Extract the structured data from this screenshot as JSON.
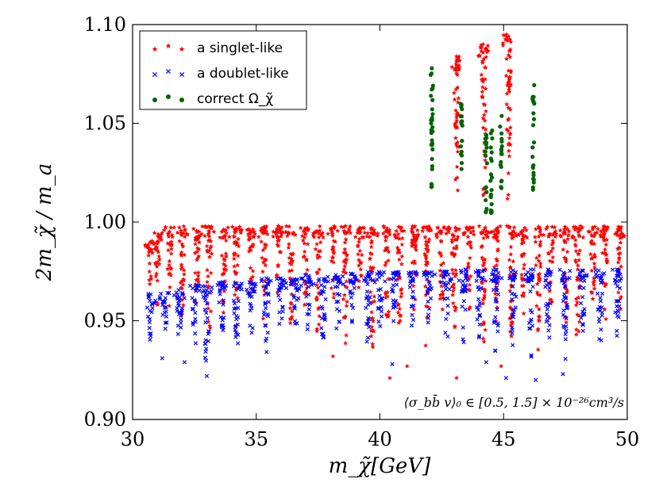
{
  "chart_data": {
    "type": "scatter",
    "title": "",
    "xlabel": "m_χ̃[GeV]",
    "ylabel": "2m_χ̃ / m_a",
    "xlim": [
      30,
      50
    ],
    "ylim": [
      0.9,
      1.1
    ],
    "xticks": [
      "30",
      "35",
      "40",
      "45",
      "50"
    ],
    "yticks": [
      "0.90",
      "0.95",
      "1.00",
      "1.05",
      "1.10"
    ],
    "grid": false,
    "legend_position": "top-left",
    "annotation": "⟨σ_bb̄ v⟩₀ ∈ [0.5, 1.5] × 10⁻²⁶cm³/s",
    "series": [
      {
        "name": "a singlet-like",
        "marker": "star",
        "color": "#ff0000",
        "spikes": [
          {
            "x": 30.7,
            "ymin": 0.96,
            "ymax": 0.992
          },
          {
            "x": 31.0,
            "ymin": 0.955,
            "ymax": 0.995
          },
          {
            "x": 31.5,
            "ymin": 0.955,
            "ymax": 0.998
          },
          {
            "x": 32.0,
            "ymin": 0.945,
            "ymax": 0.998
          },
          {
            "x": 32.6,
            "ymin": 0.95,
            "ymax": 0.998
          },
          {
            "x": 33.1,
            "ymin": 0.94,
            "ymax": 0.998
          },
          {
            "x": 33.7,
            "ymin": 0.95,
            "ymax": 0.998
          },
          {
            "x": 34.2,
            "ymin": 0.945,
            "ymax": 0.998
          },
          {
            "x": 34.8,
            "ymin": 0.955,
            "ymax": 0.998
          },
          {
            "x": 35.3,
            "ymin": 0.948,
            "ymax": 0.998
          },
          {
            "x": 35.9,
            "ymin": 0.955,
            "ymax": 0.998
          },
          {
            "x": 36.4,
            "ymin": 0.945,
            "ymax": 0.998
          },
          {
            "x": 37.0,
            "ymin": 0.955,
            "ymax": 0.998
          },
          {
            "x": 37.5,
            "ymin": 0.94,
            "ymax": 0.998
          },
          {
            "x": 38.1,
            "ymin": 0.955,
            "ymax": 0.998
          },
          {
            "x": 38.6,
            "ymin": 0.935,
            "ymax": 0.998
          },
          {
            "x": 39.2,
            "ymin": 0.95,
            "ymax": 0.998
          },
          {
            "x": 39.7,
            "ymin": 0.93,
            "ymax": 0.998
          },
          {
            "x": 40.3,
            "ymin": 0.945,
            "ymax": 0.998
          },
          {
            "x": 40.8,
            "ymin": 0.935,
            "ymax": 0.998
          },
          {
            "x": 41.4,
            "ymin": 0.945,
            "ymax": 0.998
          },
          {
            "x": 41.9,
            "ymin": 0.935,
            "ymax": 0.998
          },
          {
            "x": 42.5,
            "ymin": 0.948,
            "ymax": 0.998
          },
          {
            "x": 43.0,
            "ymin": 0.935,
            "ymax": 0.998
          },
          {
            "x": 43.6,
            "ymin": 0.95,
            "ymax": 0.998
          },
          {
            "x": 44.2,
            "ymin": 0.935,
            "ymax": 0.998
          },
          {
            "x": 44.7,
            "ymin": 0.945,
            "ymax": 0.998
          },
          {
            "x": 45.3,
            "ymin": 0.935,
            "ymax": 0.998
          },
          {
            "x": 45.8,
            "ymin": 0.95,
            "ymax": 0.998
          },
          {
            "x": 46.4,
            "ymin": 0.935,
            "ymax": 0.998
          },
          {
            "x": 46.9,
            "ymin": 0.95,
            "ymax": 0.998
          },
          {
            "x": 47.5,
            "ymin": 0.945,
            "ymax": 0.998
          },
          {
            "x": 48.0,
            "ymin": 0.93,
            "ymax": 0.998
          },
          {
            "x": 48.6,
            "ymin": 0.95,
            "ymax": 0.998
          },
          {
            "x": 49.1,
            "ymin": 0.945,
            "ymax": 0.998
          },
          {
            "x": 49.7,
            "ymin": 0.95,
            "ymax": 0.998
          },
          {
            "x": 43.1,
            "ymin": 1.005,
            "ymax": 1.084
          },
          {
            "x": 44.2,
            "ymin": 1.005,
            "ymax": 1.09
          },
          {
            "x": 45.2,
            "ymin": 1.005,
            "ymax": 1.095
          }
        ],
        "outliers": [
          [
            40.4,
            0.921
          ],
          [
            41.1,
            0.927
          ],
          [
            43.1,
            0.921
          ],
          [
            38.1,
            0.932
          ],
          [
            44.9,
            0.927
          ]
        ]
      },
      {
        "name": "a doublet-like",
        "marker": "x",
        "color": "#0000ff",
        "spikes": [
          {
            "x": 30.7,
            "ymin": 0.937,
            "ymax": 0.964
          },
          {
            "x": 31.3,
            "ymin": 0.94,
            "ymax": 0.965
          },
          {
            "x": 31.9,
            "ymin": 0.93,
            "ymax": 0.966
          },
          {
            "x": 32.5,
            "ymin": 0.935,
            "ymax": 0.968
          },
          {
            "x": 33.0,
            "ymin": 0.923,
            "ymax": 0.968
          },
          {
            "x": 33.6,
            "ymin": 0.935,
            "ymax": 0.97
          },
          {
            "x": 34.2,
            "ymin": 0.932,
            "ymax": 0.97
          },
          {
            "x": 34.8,
            "ymin": 0.94,
            "ymax": 0.97
          },
          {
            "x": 35.4,
            "ymin": 0.933,
            "ymax": 0.972
          },
          {
            "x": 36.0,
            "ymin": 0.94,
            "ymax": 0.972
          },
          {
            "x": 36.6,
            "ymin": 0.935,
            "ymax": 0.972
          },
          {
            "x": 37.1,
            "ymin": 0.945,
            "ymax": 0.973
          },
          {
            "x": 37.7,
            "ymin": 0.935,
            "ymax": 0.973
          },
          {
            "x": 38.3,
            "ymin": 0.94,
            "ymax": 0.974
          },
          {
            "x": 38.9,
            "ymin": 0.943,
            "ymax": 0.974
          },
          {
            "x": 39.5,
            "ymin": 0.935,
            "ymax": 0.975
          },
          {
            "x": 40.0,
            "ymin": 0.945,
            "ymax": 0.975
          },
          {
            "x": 40.6,
            "ymin": 0.94,
            "ymax": 0.975
          },
          {
            "x": 41.3,
            "ymin": 0.945,
            "ymax": 0.975
          },
          {
            "x": 42.0,
            "ymin": 0.943,
            "ymax": 0.975
          },
          {
            "x": 42.7,
            "ymin": 0.94,
            "ymax": 0.975
          },
          {
            "x": 43.4,
            "ymin": 0.935,
            "ymax": 0.976
          },
          {
            "x": 44.0,
            "ymin": 0.94,
            "ymax": 0.976
          },
          {
            "x": 44.7,
            "ymin": 0.93,
            "ymax": 0.976
          },
          {
            "x": 45.4,
            "ymin": 0.935,
            "ymax": 0.976
          },
          {
            "x": 46.1,
            "ymin": 0.93,
            "ymax": 0.976
          },
          {
            "x": 46.8,
            "ymin": 0.935,
            "ymax": 0.976
          },
          {
            "x": 47.5,
            "ymin": 0.93,
            "ymax": 0.976
          },
          {
            "x": 48.2,
            "ymin": 0.94,
            "ymax": 0.976
          },
          {
            "x": 48.9,
            "ymin": 0.935,
            "ymax": 0.976
          },
          {
            "x": 49.6,
            "ymin": 0.935,
            "ymax": 0.976
          }
        ],
        "outliers": [
          [
            31.2,
            0.931
          ],
          [
            32.1,
            0.929
          ],
          [
            33.0,
            0.922
          ],
          [
            46.3,
            0.92
          ],
          [
            44.3,
            0.929
          ],
          [
            47.4,
            0.923
          ],
          [
            45.1,
            0.921
          ],
          [
            40.5,
            0.928
          ]
        ]
      },
      {
        "name": "correct Ω_χ̃",
        "marker": "dot",
        "color": "#006400",
        "spikes": [
          {
            "x": 42.1,
            "ymin": 1.012,
            "ymax": 1.078
          },
          {
            "x": 43.3,
            "ymin": 1.025,
            "ymax": 1.062
          },
          {
            "x": 44.3,
            "ymin": 1.004,
            "ymax": 1.046
          },
          {
            "x": 44.5,
            "ymin": 1.003,
            "ymax": 1.048
          },
          {
            "x": 44.9,
            "ymin": 1.015,
            "ymax": 1.058
          },
          {
            "x": 46.2,
            "ymin": 1.016,
            "ymax": 1.07
          }
        ],
        "outliers": []
      }
    ]
  }
}
